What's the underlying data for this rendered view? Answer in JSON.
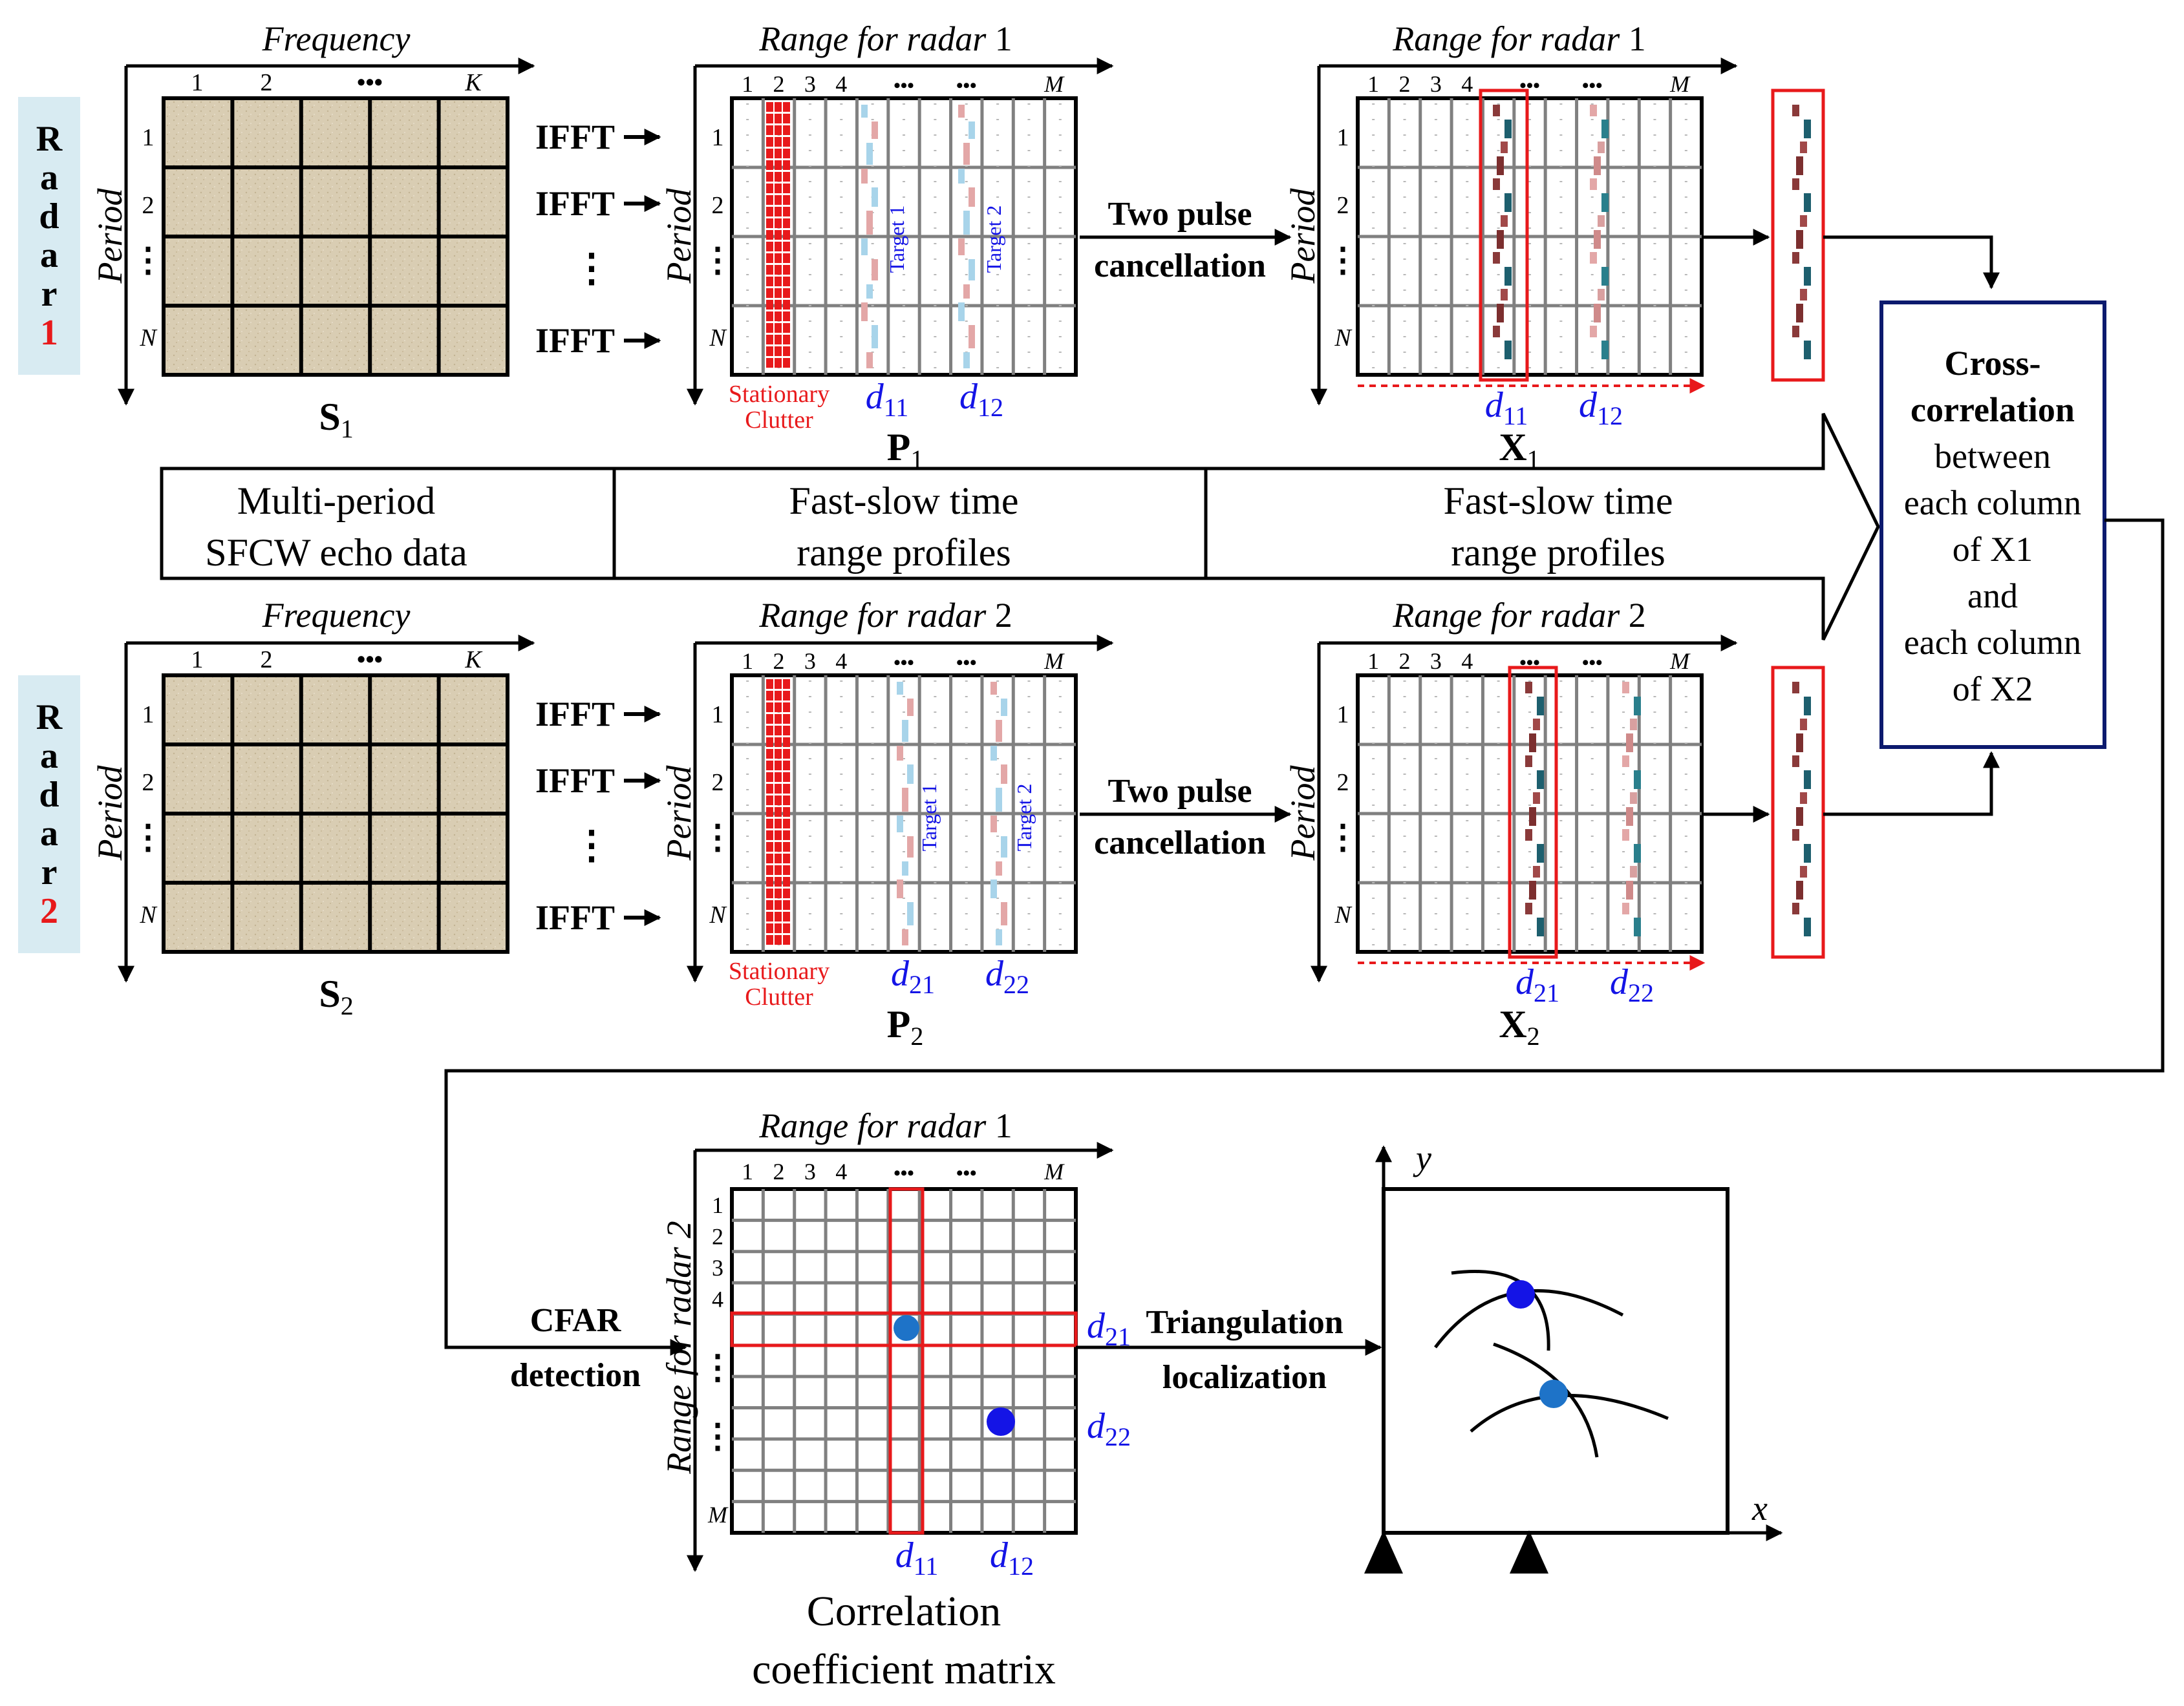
{
  "radar1": {
    "side_word": "Radar",
    "side_num": "1",
    "freq_axis": "Frequency",
    "period_axis": "Period",
    "freq_ticks": [
      "1",
      "2",
      "•••",
      "K"
    ],
    "period_ticks": [
      "1",
      "2",
      "⋮",
      "N"
    ],
    "ifft": "IFFT",
    "vdots": "⋮",
    "matrix_S_base": "S",
    "matrix_S_sub": "1",
    "range_axis_base": "Range for radar",
    "range_axis_num": "1",
    "range_ticks": [
      "1",
      "2",
      "3",
      "4",
      "•••",
      "•••",
      "M"
    ],
    "target1": "Target 1",
    "target2": "Target 2",
    "clutter_1": "Stationary",
    "clutter_2": "Clutter",
    "d_a": "d",
    "d_a_sub": "11",
    "d_b": "d",
    "d_b_sub": "12",
    "matrix_P_base": "P",
    "matrix_P_sub": "1",
    "cancel_1": "Two pulse",
    "cancel_2": "cancellation",
    "matrix_X_base": "X",
    "matrix_X_sub": "1"
  },
  "radar2": {
    "side_word": "Radar",
    "side_num": "2",
    "freq_axis": "Frequency",
    "period_axis": "Period",
    "freq_ticks": [
      "1",
      "2",
      "•••",
      "K"
    ],
    "period_ticks": [
      "1",
      "2",
      "⋮",
      "N"
    ],
    "ifft": "IFFT",
    "vdots": "⋮",
    "matrix_S_base": "S",
    "matrix_S_sub": "2",
    "range_axis_base": "Range for radar",
    "range_axis_num": "2",
    "range_ticks": [
      "1",
      "2",
      "3",
      "4",
      "•••",
      "•••",
      "M"
    ],
    "target1": "Target 1",
    "target2": "Target 2",
    "clutter_1": "Stationary",
    "clutter_2": "Clutter",
    "d_a": "d",
    "d_a_sub": "21",
    "d_b": "d",
    "d_b_sub": "22",
    "matrix_P_base": "P",
    "matrix_P_sub": "2",
    "cancel_1": "Two pulse",
    "cancel_2": "cancellation",
    "matrix_X_base": "X",
    "matrix_X_sub": "2"
  },
  "stage_arrow": {
    "s1_l1": "Multi-period",
    "s1_l2": "SFCW echo data",
    "s2_l1": "Fast-slow time",
    "s2_l2": "range profiles",
    "s3_l1": "Fast-slow time",
    "s3_l2": "range profiles"
  },
  "xcorr": {
    "l1": "Cross-",
    "l2": "correlation",
    "l3": "between",
    "l4": "each column",
    "l5": "of X1",
    "l6": "and",
    "l7": "each column",
    "l8": "of X2"
  },
  "correlation": {
    "top_axis_base": "Range for radar",
    "top_axis_num": "1",
    "side_axis": "Range for radar 2",
    "top_ticks": [
      "1",
      "2",
      "3",
      "4",
      "•••",
      "•••",
      "M"
    ],
    "side_ticks": [
      "1",
      "2",
      "3",
      "4",
      "⋮",
      "⋮",
      "M"
    ],
    "d21": "d",
    "d21_sub": "21",
    "d22": "d",
    "d22_sub": "22",
    "d11": "d",
    "d11_sub": "11",
    "d12": "d",
    "d12_sub": "12",
    "caption_1": "Correlation",
    "caption_2": "coefficient matrix"
  },
  "cfar": {
    "l1": "CFAR",
    "l2": "detection"
  },
  "triang": {
    "l1": "Triangulation",
    "l2": "localization"
  },
  "xy_plot": {
    "x_label": "x",
    "y_label": "y"
  },
  "colors": {
    "red": "#e8191b",
    "blue": "#1414e6",
    "dot_blue": "#1e73c8",
    "sand": "#d9cdb3",
    "navy": "#0c1a6e",
    "teal": "#1d5f6e",
    "maroon": "#8a3a3a",
    "pink": "#e3a7a7",
    "light_blue": "#a8d4ea",
    "side_bg": "#d8ebf2"
  }
}
